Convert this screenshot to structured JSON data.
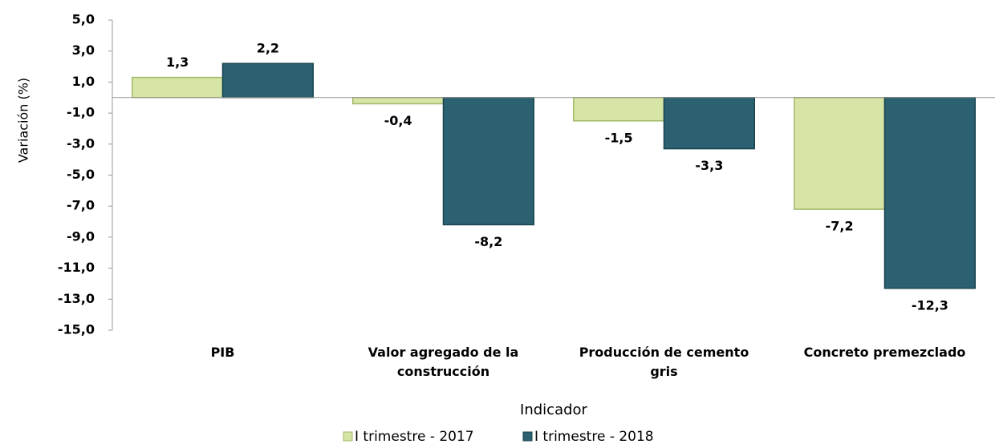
{
  "chart_data": {
    "type": "bar",
    "y_label": "Variación  (%)",
    "x_label": "Indicador",
    "categories": [
      "PIB",
      "Valor agregado de la construcción",
      "Producción de cemento gris",
      "Concreto premezclado"
    ],
    "series": [
      {
        "name": "I trimestre - 2017",
        "color": "#d6e4a5",
        "values": [
          1.3,
          -0.4,
          -1.5,
          -7.2
        ],
        "value_labels": [
          "1,3",
          "-0,4",
          "-1,5",
          "-7,2"
        ]
      },
      {
        "name": "I trimestre - 2018",
        "color": "#2b6170",
        "values": [
          2.2,
          -8.2,
          -3.3,
          -12.3
        ],
        "value_labels": [
          "2,2",
          "-8,2",
          "-3,3",
          "-12,3"
        ]
      }
    ],
    "ylim": [
      -15,
      5
    ],
    "yticks": [
      {
        "value": 5,
        "label": "5,0"
      },
      {
        "value": 3,
        "label": "3,0"
      },
      {
        "value": 1,
        "label": "1,0"
      },
      {
        "value": -1,
        "label": "-1,0"
      },
      {
        "value": -3,
        "label": "-3,0"
      },
      {
        "value": -5,
        "label": "-5,0"
      },
      {
        "value": -7,
        "label": "-7,0"
      },
      {
        "value": -9,
        "label": "-9,0"
      },
      {
        "value": -11,
        "label": "-11,0"
      },
      {
        "value": -13,
        "label": "-13,0"
      },
      {
        "value": -15,
        "label": "-15,0"
      }
    ],
    "grid": false
  }
}
